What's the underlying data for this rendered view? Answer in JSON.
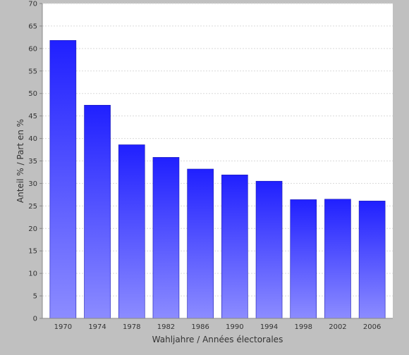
{
  "chart_data": {
    "type": "bar",
    "categories": [
      "1970",
      "1974",
      "1978",
      "1982",
      "1986",
      "1990",
      "1994",
      "1998",
      "2002",
      "2006"
    ],
    "values": [
      61.8,
      47.4,
      38.6,
      35.8,
      33.2,
      31.9,
      30.5,
      26.4,
      26.5,
      26.1
    ],
    "xlabel": "Wahljahre / Années électorales",
    "ylabel": "Anteil % / Part en %",
    "ylim": [
      0,
      70
    ],
    "yticks": [
      0,
      5,
      10,
      15,
      20,
      25,
      30,
      35,
      40,
      45,
      50,
      55,
      60,
      65,
      70
    ],
    "grid": true,
    "legend": "none",
    "colors": {
      "background": "#c0c0c0",
      "plot_background": "#ffffff",
      "bar_top": "#2020ff",
      "bar_bottom": "#8c8cff",
      "gridline": "#d9d9d9"
    }
  }
}
